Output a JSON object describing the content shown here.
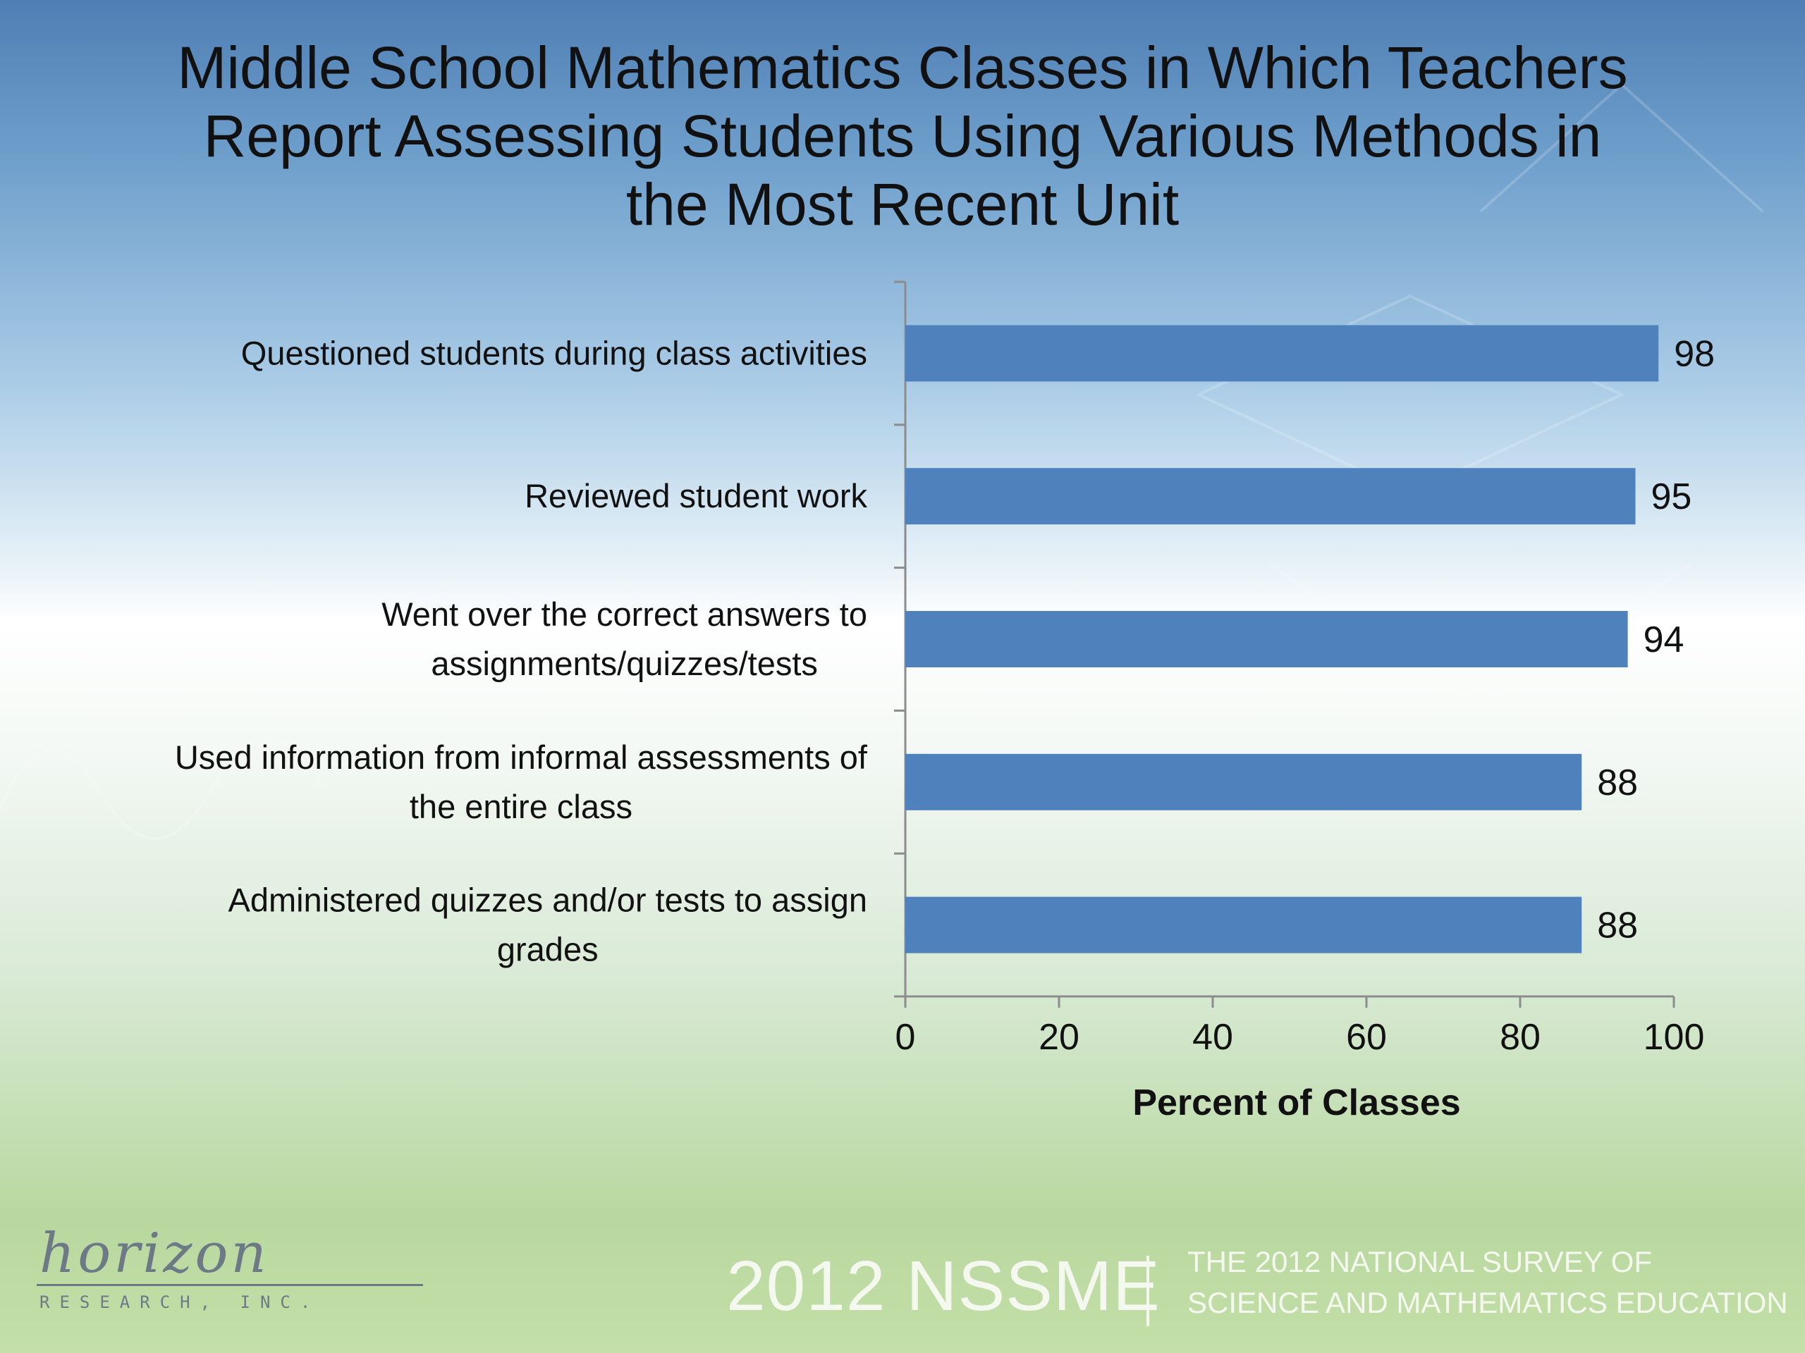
{
  "slide": {
    "title": "Middle School Mathematics Classes in Which Teachers\nReport Assessing Students Using Various Methods in\nthe Most Recent Unit"
  },
  "chart_data": {
    "type": "bar",
    "orientation": "horizontal",
    "categories": [
      "Questioned students during class activities",
      "Reviewed student work",
      "Went over the correct answers to assignments/quizzes/tests",
      "Used information from informal assessments of the entire class",
      "Administered quizzes and/or tests to assign grades"
    ],
    "category_lines": [
      [
        "Questioned students during class activities"
      ],
      [
        "Reviewed student work"
      ],
      [
        "Went over the correct answers to",
        "assignments/quizzes/tests"
      ],
      [
        "Used information from informal assessments of",
        "the entire class"
      ],
      [
        "Administered quizzes and/or tests to assign",
        "grades"
      ]
    ],
    "values": [
      98,
      95,
      94,
      88,
      88
    ],
    "data_labels": [
      "98",
      "95",
      "94",
      "88",
      "88"
    ],
    "xlabel": "Percent of Classes",
    "ylabel": "",
    "xlim": [
      0,
      100
    ],
    "xticks": [
      0,
      20,
      40,
      60,
      80,
      100
    ],
    "grid": false,
    "legend": "none",
    "bar_color": "#4f81bd"
  },
  "footer": {
    "logo_text": "horizon",
    "logo_subtext": "RESEARCH, INC.",
    "brand": "2012 NSSME",
    "tagline_line1": "THE 2012 NATIONAL SURVEY OF",
    "tagline_line2": "SCIENCE AND MATHEMATICS EDUCATION"
  }
}
